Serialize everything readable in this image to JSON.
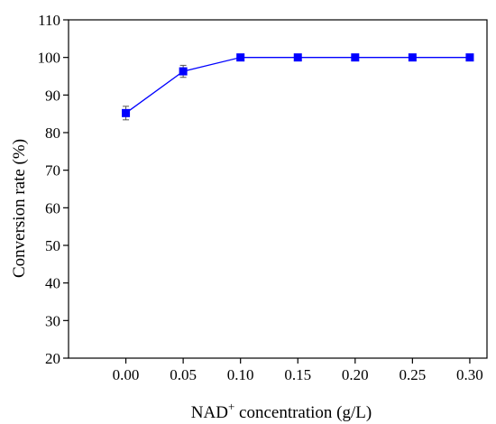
{
  "chart_data": {
    "type": "line",
    "xlabel_main": "NAD",
    "xlabel_sup": "+",
    "xlabel_rest": " concentration (g/L)",
    "ylabel": "Conversion rate (%)",
    "xlim": [
      -0.05,
      0.315
    ],
    "ylim": [
      20,
      110
    ],
    "x_ticks": [
      "0.00",
      "0.05",
      "0.10",
      "0.15",
      "0.20",
      "0.25",
      "0.30"
    ],
    "y_ticks": [
      "20",
      "30",
      "40",
      "50",
      "60",
      "70",
      "80",
      "90",
      "100",
      "110"
    ],
    "series": [
      {
        "x": [
          0.0,
          0.05,
          0.1,
          0.15,
          0.2,
          0.25,
          0.3
        ],
        "y": [
          85.2,
          96.3,
          100,
          100,
          100,
          100,
          100
        ],
        "error": [
          1.8,
          1.6,
          0,
          0,
          0,
          0,
          0
        ]
      }
    ],
    "color": "#0000ff",
    "marker": "square",
    "grid": false,
    "legend": "none"
  }
}
